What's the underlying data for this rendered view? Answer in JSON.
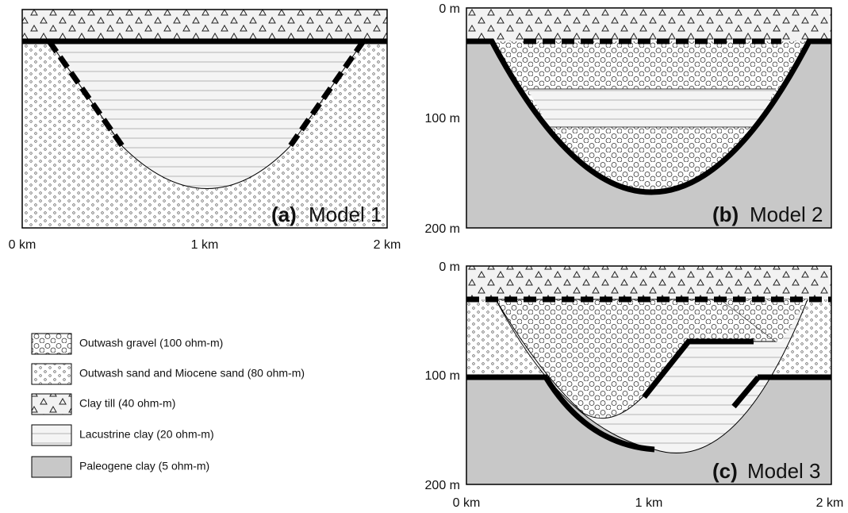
{
  "panels": [
    {
      "label": "(a)",
      "title": "Model 1",
      "x_labels": [
        "0 km",
        "1 km",
        "2 km"
      ]
    },
    {
      "label": "(b)",
      "title": "Model 2",
      "y_labels": [
        "0 m",
        "100 m",
        "200 m"
      ]
    },
    {
      "label": "(c)",
      "title": "Model 3",
      "y_labels": [
        "0 m",
        "100 m",
        "200 m"
      ],
      "x_labels": [
        "0 km",
        "1 km",
        "2 km"
      ]
    }
  ],
  "legend": [
    {
      "label": "Outwash gravel (100 ohm-m)"
    },
    {
      "label": "Outwash sand and Miocene sand (80 ohm-m)"
    },
    {
      "label": "Clay till (40 ohm-m)"
    },
    {
      "label": "Lacustrine clay (20 ohm-m)"
    },
    {
      "label": "Paleogene clay (5 ohm-m)"
    }
  ]
}
